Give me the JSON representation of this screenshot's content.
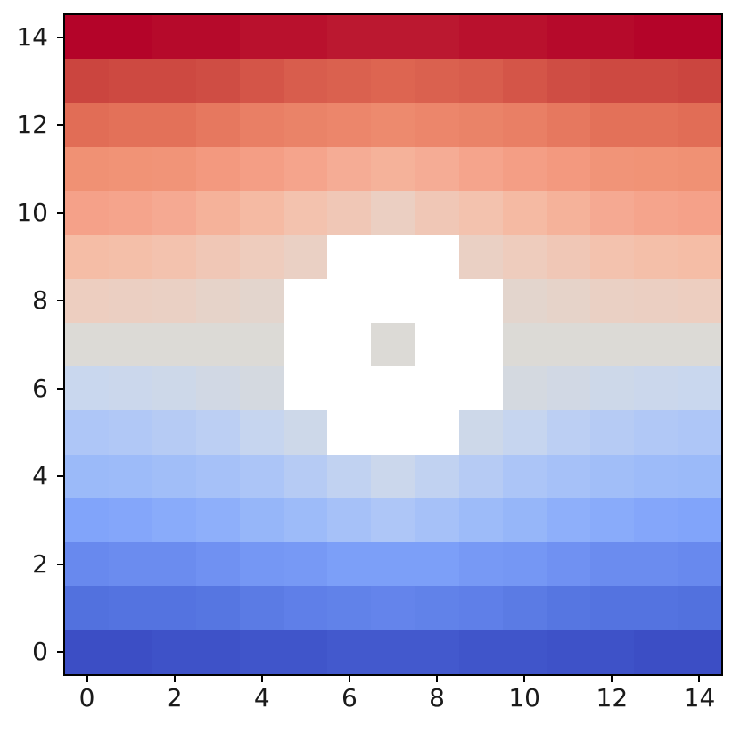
{
  "figure": {
    "background": "#ffffff",
    "spine_color": "#000000",
    "tick_label_color": "#1a1a1a"
  },
  "chart_data": {
    "type": "heatmap",
    "title": "",
    "xlabel": "",
    "ylabel": "",
    "colormap": "coolwarm",
    "vmin": 0,
    "vmax": 14,
    "n_rows": 15,
    "n_cols": 15,
    "origin": "lower",
    "grid": false,
    "x_ticks": [
      0,
      2,
      4,
      6,
      8,
      10,
      12,
      14
    ],
    "y_ticks": [
      0,
      2,
      4,
      6,
      8,
      10,
      12,
      14
    ],
    "masked_cell_color": "#ffffff",
    "colormap_stops": [
      "#3c4ec5",
      "#5271de",
      "#6889ee",
      "#81a4fa",
      "#9bbaf9",
      "#aec6f7",
      "#c9d7ee",
      "#dcdad6",
      "#edcec0",
      "#f5bda6",
      "#f5a189",
      "#f09174",
      "#e16d56",
      "#cb453f",
      "#b40429"
    ],
    "row_y_values_top_to_bottom": [
      14,
      13,
      12,
      11,
      10,
      9,
      8,
      7,
      6,
      5,
      4,
      3,
      2,
      1,
      0
    ],
    "rows_top_to_bottom": [
      [
        14,
        14,
        13.9,
        13.9,
        13.8,
        13.8,
        13.7,
        13.7,
        13.7,
        13.8,
        13.8,
        13.9,
        13.9,
        14,
        14
      ],
      [
        13,
        12.9,
        12.9,
        12.8,
        12.6,
        12.4,
        12.3,
        12.2,
        12.3,
        12.4,
        12.6,
        12.8,
        12.9,
        12.9,
        13
      ],
      [
        12,
        11.9,
        11.9,
        11.7,
        11.5,
        11.4,
        11.3,
        11.2,
        11.3,
        11.4,
        11.5,
        11.7,
        11.9,
        11.9,
        12
      ],
      [
        11,
        10.9,
        10.8,
        10.5,
        10.2,
        9.9,
        9.6,
        9.4,
        9.6,
        9.9,
        10.2,
        10.5,
        10.8,
        10.9,
        11
      ],
      [
        10,
        9.9,
        9.7,
        9.4,
        9.1,
        8.7,
        8.4,
        7.9,
        8.4,
        8.7,
        9.1,
        9.4,
        9.7,
        9.9,
        10
      ],
      [
        9,
        8.9,
        8.7,
        8.4,
        8.1,
        7.8,
        null,
        null,
        null,
        7.8,
        8.1,
        8.4,
        8.7,
        8.9,
        9
      ],
      [
        8,
        7.9,
        7.8,
        7.6,
        7.4,
        null,
        null,
        null,
        null,
        null,
        7.4,
        7.6,
        7.8,
        7.9,
        8
      ],
      [
        7,
        7,
        7,
        7,
        7,
        null,
        null,
        7,
        null,
        null,
        7,
        7,
        7,
        7,
        7
      ],
      [
        6,
        6.1,
        6.2,
        6.4,
        6.6,
        null,
        null,
        null,
        null,
        null,
        6.6,
        6.4,
        6.2,
        6.1,
        6
      ],
      [
        5,
        5.1,
        5.3,
        5.5,
        5.9,
        6.2,
        null,
        null,
        null,
        6.2,
        5.9,
        5.5,
        5.3,
        5.1,
        5
      ],
      [
        4,
        4.1,
        4.3,
        4.6,
        4.9,
        5.3,
        5.7,
        6.1,
        5.7,
        5.3,
        4.9,
        4.6,
        4.3,
        4.1,
        4
      ],
      [
        3,
        3.1,
        3.3,
        3.5,
        3.8,
        4.1,
        4.6,
        5,
        4.6,
        4.1,
        3.8,
        3.5,
        3.3,
        3.1,
        3
      ],
      [
        2,
        2.1,
        2.1,
        2.3,
        2.5,
        2.6,
        2.8,
        2.8,
        2.8,
        2.6,
        2.5,
        2.3,
        2.1,
        2.1,
        2
      ],
      [
        1,
        1.1,
        1.1,
        1.2,
        1.4,
        1.6,
        1.7,
        1.8,
        1.7,
        1.6,
        1.4,
        1.2,
        1.1,
        1.1,
        1
      ],
      [
        0,
        0,
        0.1,
        0.1,
        0.2,
        0.2,
        0.3,
        0.3,
        0.3,
        0.2,
        0.2,
        0.1,
        0.1,
        0,
        0
      ]
    ]
  }
}
